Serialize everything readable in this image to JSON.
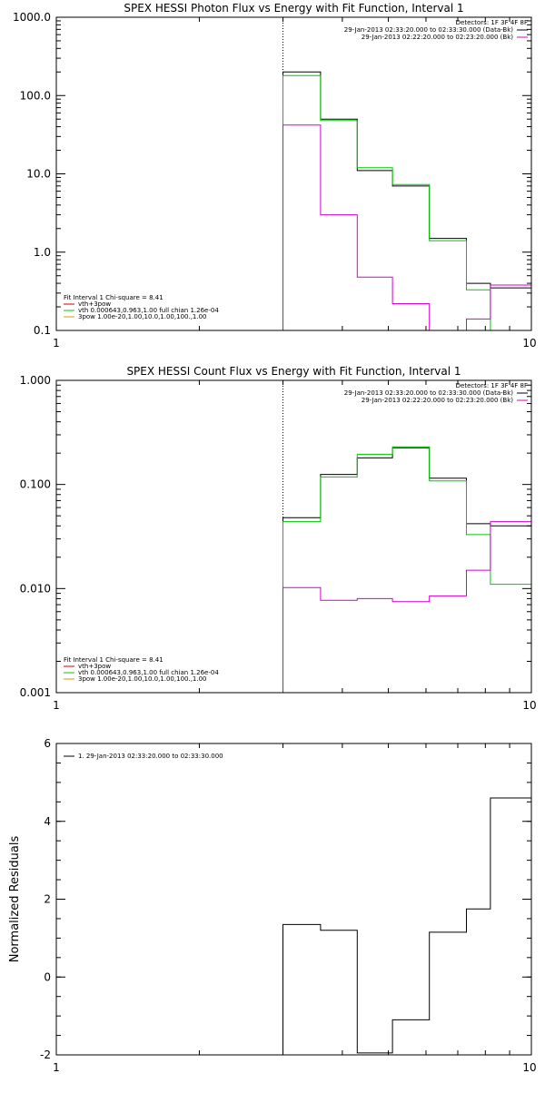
{
  "chart_data": [
    {
      "type": "line",
      "title": "SPEX HESSI Photon Flux vs Energy with Fit Function, Interval 1",
      "xscale": "log",
      "yscale": "log",
      "xlim": [
        1,
        10
      ],
      "ylim": [
        0.1,
        1000
      ],
      "xticks": [
        1,
        10
      ],
      "xtick_labels": [
        "1",
        "10"
      ],
      "yticks": [
        0.1,
        1,
        10,
        100,
        1000
      ],
      "ytick_labels": [
        "0.1",
        "1.0",
        "10.0",
        "100.0",
        "1000.0"
      ],
      "vline": 3,
      "legend_right": {
        "header": "Detectors: 1F 3F 4F 8F",
        "lines": [
          {
            "text": "29-Jan-2013 02:33:20.000 to 02:33:30.000 (Data-Bk)",
            "color": "#000000"
          },
          {
            "text": "29-Jan-2013 02:22:20.000 to 02:23:20.000 (Bk)",
            "color": "#d200d2"
          }
        ]
      },
      "legend_left": {
        "header": "Fit Interval 1   Chi-square = 8.41",
        "lines": [
          {
            "text": "vth+3pow",
            "color": "#cc0000"
          },
          {
            "text": "vth 0.000643,0.963,1.00  full chian 1.26e-04",
            "color": "#00cc00"
          },
          {
            "text": "3pow 1.00e-20,1.00,10.0,1.00,100.,1.00",
            "color": "#c8a000"
          }
        ]
      },
      "edges": [
        3,
        3.6,
        4.3,
        5.1,
        6.1,
        7.3,
        8.2,
        10
      ],
      "series": [
        {
          "color": "#000000",
          "values": [
            200,
            50,
            11,
            7,
            1.5,
            0.4,
            0.35
          ]
        },
        {
          "color": "#00c800",
          "values": [
            180,
            48,
            12,
            7.3,
            1.4,
            0.33,
            0.09
          ]
        },
        {
          "color": "#d200d2",
          "values": [
            42,
            3,
            0.48,
            0.22,
            0.1,
            0.14,
            0.38
          ]
        }
      ]
    },
    {
      "type": "line",
      "title": "SPEX HESSI Count Flux vs Energy with Fit Function, Interval 1",
      "xscale": "log",
      "yscale": "log",
      "xlim": [
        1,
        10
      ],
      "ylim": [
        0.001,
        1
      ],
      "xticks": [
        1,
        10
      ],
      "xtick_labels": [
        "1",
        "10"
      ],
      "yticks": [
        0.001,
        0.01,
        0.1,
        1
      ],
      "ytick_labels": [
        "0.001",
        "0.010",
        "0.100",
        "1.000"
      ],
      "vline": 3,
      "legend_right": {
        "header": "Detectors: 1F 3F 4F 8F",
        "lines": [
          {
            "text": "29-Jan-2013 02:33:20.000 to 02:33:30.000 (Data-Bk)",
            "color": "#000000"
          },
          {
            "text": "29-Jan-2013 02:22:20.000 to 02:23:20.000 (Bk)",
            "color": "#d200d2"
          }
        ]
      },
      "legend_left": {
        "header": "Fit Interval 1   Chi-square = 8.41",
        "lines": [
          {
            "text": "vth+3pow",
            "color": "#cc0000"
          },
          {
            "text": "vth 0.000643,0.963,1.00  full chian 1.26e-04",
            "color": "#00cc00"
          },
          {
            "text": "3pow 1.00e-20,1.00,10.0,1.00,100.,1.00",
            "color": "#c8a000"
          }
        ]
      },
      "edges": [
        3,
        3.6,
        4.3,
        5.1,
        6.1,
        7.3,
        8.2,
        10
      ],
      "series": [
        {
          "color": "#000000",
          "values": [
            0.048,
            0.125,
            0.18,
            0.225,
            0.115,
            0.042,
            0.04
          ]
        },
        {
          "color": "#00c800",
          "values": [
            0.044,
            0.118,
            0.195,
            0.23,
            0.108,
            0.033,
            0.011
          ]
        },
        {
          "color": "#d200d2",
          "values": [
            0.0102,
            0.0077,
            0.008,
            0.0075,
            0.0085,
            0.015,
            0.044
          ]
        }
      ]
    },
    {
      "type": "line",
      "xscale": "log",
      "yscale": "linear",
      "xlim": [
        1,
        10
      ],
      "ylim": [
        -2,
        6
      ],
      "ylabel": "Normalized Residuals",
      "xticks": [
        1,
        10
      ],
      "xtick_labels": [
        "1",
        "10"
      ],
      "yticks": [
        -2,
        0,
        2,
        4,
        6
      ],
      "ytick_labels": [
        "-2",
        "0",
        "2",
        "4",
        "6"
      ],
      "legend_left": {
        "lines": [
          {
            "text": "1. 29-Jan-2013 02:33:20.000 to 02:33:30.000",
            "color": "#000000"
          }
        ]
      },
      "edges": [
        3,
        3.6,
        4.3,
        5.1,
        6.1,
        7.3,
        8.2,
        10
      ],
      "series": [
        {
          "color": "#000000",
          "values": [
            1.35,
            1.2,
            -1.95,
            -1.1,
            1.15,
            1.75,
            4.6
          ]
        }
      ]
    }
  ]
}
